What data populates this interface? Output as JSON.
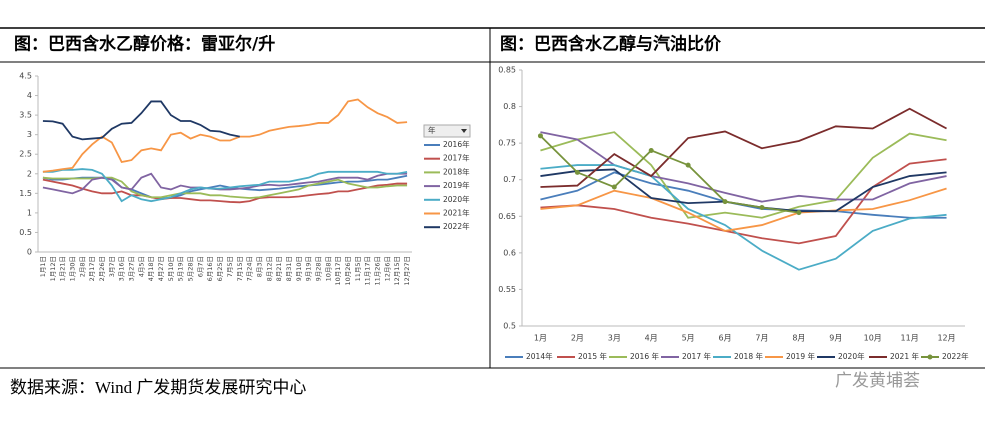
{
  "chart_data": [
    {
      "type": "line",
      "title": "图：巴西含水乙醇价格：雷亚尔/升",
      "legend_title": "年",
      "legend": "right",
      "categories": [
        "1月1日",
        "1月12日",
        "1月21日",
        "1月30日",
        "2月8日",
        "2月17日",
        "2月26日",
        "3月7日",
        "3月16日",
        "3月27日",
        "4月5日",
        "4月18日",
        "4月27日",
        "5月10日",
        "5月19日",
        "5月28日",
        "6月7日",
        "6月16日",
        "6月25日",
        "7月5日",
        "7月15日",
        "7月24日",
        "8月3日",
        "8月12日",
        "8月21日",
        "8月31日",
        "9月10日",
        "9月19日",
        "9月28日",
        "10月8日",
        "10月17日",
        "10月26日",
        "11月5日",
        "11月17日",
        "11月26日",
        "12月6日",
        "12月15日",
        "12月27日"
      ],
      "ylim": [
        0,
        4.5
      ],
      "yticks": [
        0,
        0.5,
        1,
        1.5,
        2,
        2.5,
        3,
        3.5,
        4,
        4.5
      ],
      "series": [
        {
          "name": "2016年",
          "color": "#4a7ebb",
          "values": [
            1.9,
            1.85,
            1.85,
            1.88,
            1.9,
            1.9,
            1.9,
            1.88,
            1.65,
            1.6,
            1.5,
            1.4,
            1.38,
            1.38,
            1.45,
            1.55,
            1.6,
            1.65,
            1.7,
            1.65,
            1.62,
            1.6,
            1.58,
            1.6,
            1.62,
            1.65,
            1.68,
            1.7,
            1.72,
            1.75,
            1.78,
            1.8,
            1.8,
            1.82,
            1.85,
            1.85,
            1.9,
            1.95
          ]
        },
        {
          "name": "2017年",
          "color": "#c0504d",
          "values": [
            1.85,
            1.8,
            1.75,
            1.7,
            1.62,
            1.55,
            1.5,
            1.5,
            1.55,
            1.45,
            1.45,
            1.4,
            1.35,
            1.38,
            1.38,
            1.35,
            1.32,
            1.32,
            1.3,
            1.28,
            1.27,
            1.3,
            1.38,
            1.4,
            1.4,
            1.4,
            1.42,
            1.45,
            1.48,
            1.5,
            1.55,
            1.55,
            1.6,
            1.65,
            1.7,
            1.72,
            1.75,
            1.75
          ]
        },
        {
          "name": "2018年",
          "color": "#9bbb59",
          "values": [
            1.9,
            1.88,
            1.88,
            1.88,
            1.88,
            1.88,
            1.9,
            1.9,
            1.8,
            1.55,
            1.45,
            1.4,
            1.4,
            1.45,
            1.5,
            1.5,
            1.5,
            1.45,
            1.45,
            1.42,
            1.4,
            1.38,
            1.4,
            1.45,
            1.5,
            1.55,
            1.6,
            1.7,
            1.75,
            1.8,
            1.85,
            1.75,
            1.7,
            1.65,
            1.65,
            1.68,
            1.7,
            1.7
          ]
        },
        {
          "name": "2019年",
          "color": "#8064a2",
          "values": [
            1.65,
            1.6,
            1.55,
            1.5,
            1.6,
            1.85,
            1.9,
            1.85,
            1.65,
            1.6,
            1.9,
            2.0,
            1.65,
            1.6,
            1.7,
            1.65,
            1.65,
            1.62,
            1.6,
            1.6,
            1.62,
            1.65,
            1.7,
            1.72,
            1.7,
            1.72,
            1.75,
            1.78,
            1.8,
            1.85,
            1.9,
            1.9,
            1.9,
            1.85,
            1.95,
            2.0,
            2.0,
            2.0
          ]
        },
        {
          "name": "2020年",
          "color": "#4bacc6",
          "values": [
            2.05,
            2.05,
            2.1,
            2.1,
            2.12,
            2.1,
            2.0,
            1.7,
            1.3,
            1.45,
            1.35,
            1.3,
            1.35,
            1.4,
            1.5,
            1.6,
            1.65,
            1.62,
            1.62,
            1.65,
            1.68,
            1.7,
            1.72,
            1.8,
            1.8,
            1.8,
            1.85,
            1.9,
            2.0,
            2.05,
            2.05,
            2.05,
            2.05,
            2.05,
            2.05,
            2.0,
            2.0,
            2.05
          ]
        },
        {
          "name": "2021年",
          "color": "#f79646",
          "values": [
            2.05,
            2.08,
            2.12,
            2.15,
            2.5,
            2.75,
            2.95,
            2.8,
            2.3,
            2.35,
            2.6,
            2.65,
            2.6,
            3.0,
            3.05,
            2.9,
            3.0,
            2.95,
            2.85,
            2.85,
            2.95,
            2.95,
            3.0,
            3.1,
            3.15,
            3.2,
            3.22,
            3.25,
            3.3,
            3.3,
            3.5,
            3.85,
            3.9,
            3.7,
            3.55,
            3.45,
            3.3,
            3.32
          ]
        },
        {
          "name": "2022年",
          "color": "#1f3864",
          "values": [
            3.35,
            3.34,
            3.28,
            2.95,
            2.88,
            2.9,
            2.92,
            3.15,
            3.28,
            3.3,
            3.55,
            3.85,
            3.85,
            3.5,
            3.35,
            3.35,
            3.25,
            3.1,
            3.08,
            3.0,
            2.95,
            null,
            null,
            null,
            null,
            null,
            null,
            null,
            null,
            null,
            null,
            null,
            null,
            null,
            null,
            null,
            null,
            null
          ]
        }
      ]
    },
    {
      "type": "line",
      "title": "图：巴西含水乙醇与汽油比价",
      "legend": "bottom",
      "categories": [
        "1月",
        "2月",
        "3月",
        "4月",
        "5月",
        "6月",
        "7月",
        "8月",
        "9月",
        "10月",
        "11月",
        "12月"
      ],
      "ylim": [
        0.5,
        0.85
      ],
      "yticks": [
        0.5,
        0.55,
        0.6,
        0.65,
        0.7,
        0.75,
        0.8,
        0.85
      ],
      "series": [
        {
          "name": "2014年",
          "color": "#4a7ebb",
          "values": [
            0.673,
            0.685,
            0.71,
            0.695,
            0.685,
            0.67,
            0.66,
            0.658,
            0.657,
            0.652,
            0.648,
            0.648
          ]
        },
        {
          "name": "2015 年",
          "color": "#c0504d",
          "values": [
            0.662,
            0.665,
            0.66,
            0.648,
            0.64,
            0.63,
            0.62,
            0.613,
            0.623,
            0.69,
            0.722,
            0.728
          ]
        },
        {
          "name": "2016 年",
          "color": "#9bbb59",
          "values": [
            0.74,
            0.755,
            0.765,
            0.72,
            0.648,
            0.655,
            0.648,
            0.663,
            0.672,
            0.73,
            0.763,
            0.754
          ]
        },
        {
          "name": "2017 年",
          "color": "#8064a2",
          "values": [
            0.765,
            0.755,
            0.72,
            0.705,
            0.695,
            0.682,
            0.67,
            0.678,
            0.673,
            0.673,
            0.695,
            0.705
          ]
        },
        {
          "name": "2018 年",
          "color": "#4bacc6",
          "values": [
            0.715,
            0.72,
            0.72,
            0.705,
            0.66,
            0.638,
            0.603,
            0.577,
            0.592,
            0.63,
            0.647,
            0.652
          ]
        },
        {
          "name": "2019 年",
          "color": "#f79646",
          "values": [
            0.66,
            0.665,
            0.685,
            0.675,
            0.655,
            0.63,
            0.638,
            0.655,
            0.658,
            0.66,
            0.672,
            0.688
          ]
        },
        {
          "name": "2020年",
          "color": "#1f3864",
          "values": [
            0.705,
            0.712,
            0.714,
            0.675,
            0.668,
            0.67,
            0.662,
            0.657,
            0.657,
            0.69,
            0.705,
            0.71
          ]
        },
        {
          "name": "2021 年",
          "color": "#7b2c2c",
          "values": [
            0.69,
            0.692,
            0.735,
            0.705,
            0.757,
            0.766,
            0.743,
            0.753,
            0.773,
            0.77,
            0.797,
            0.77
          ]
        },
        {
          "name": "2022年",
          "color": "#77933c",
          "marker": true,
          "values": [
            0.76,
            0.71,
            0.69,
            0.74,
            0.72,
            0.67,
            0.662,
            0.655,
            null,
            null,
            null,
            null
          ]
        }
      ]
    }
  ],
  "source": "数据来源：Wind  广发期货发展研究中心",
  "watermark": "广发黄埔荟"
}
